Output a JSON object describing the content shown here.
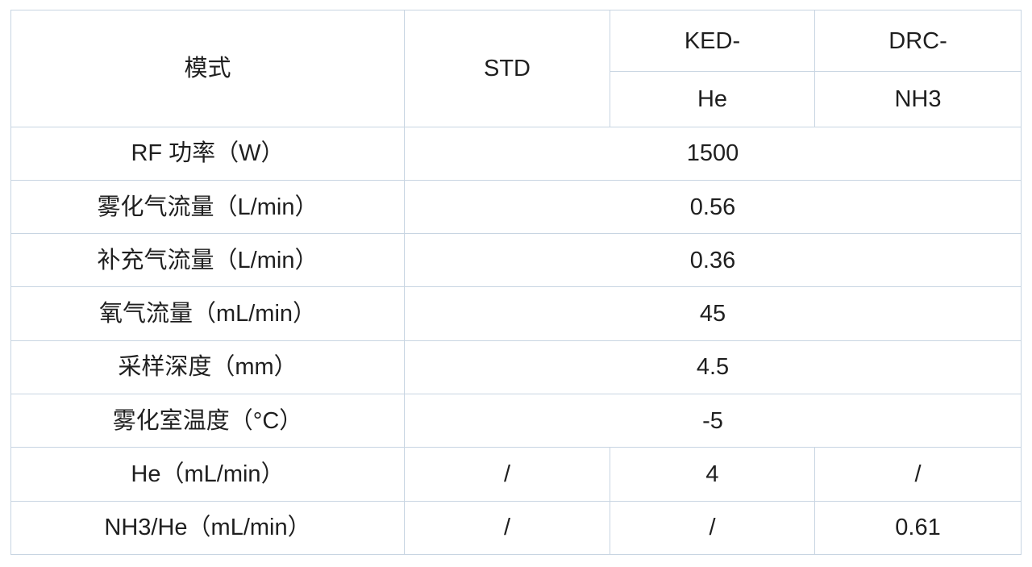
{
  "colors": {
    "background": "#ffffff",
    "grid_border": "#c8d5e2",
    "accent_line": "#a2b8d3",
    "text": "#1f1f1f"
  },
  "chart_data": {
    "type": "table",
    "title": "",
    "layout": {
      "grid": "on",
      "header_rows": 2,
      "accent_divider": "thick steel-blue line under KED- and DRC- header cells"
    },
    "header": {
      "mode": "模式",
      "std": "STD",
      "ked": "KED-",
      "drc": "DRC-",
      "ked_sub": "He",
      "drc_sub": "NH3"
    },
    "merged_rows": [
      {
        "label": "RF 功率（W）",
        "value": "1500"
      },
      {
        "label": "雾化气流量（L/min）",
        "value": "0.56"
      },
      {
        "label": "补充气流量（L/min）",
        "value": "0.36"
      },
      {
        "label": "氧气流量（mL/min）",
        "value": "45"
      },
      {
        "label": "采样深度（mm）",
        "value": "4.5"
      },
      {
        "label": "雾化室温度（°C）",
        "value": "-5"
      }
    ],
    "split_rows": [
      {
        "label": "He（mL/min）",
        "std": "/",
        "ked": "4",
        "drc": "/"
      },
      {
        "label": "NH3/He（mL/min）",
        "std": "/",
        "ked": "/",
        "drc": "0.61"
      }
    ]
  }
}
